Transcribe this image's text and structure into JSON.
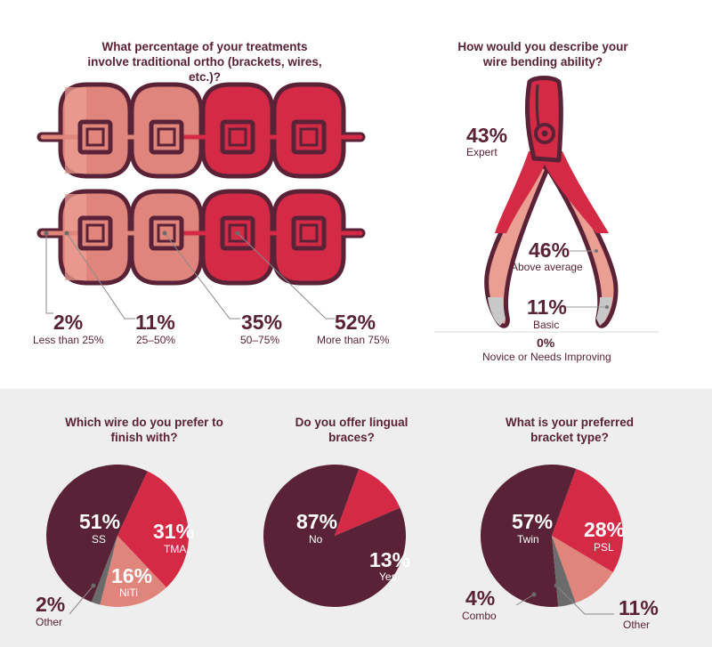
{
  "colors": {
    "maroon": "#5a2236",
    "red": "#d42a46",
    "pink": "#e0857c",
    "light_pink": "#eb9f93",
    "gray": "#6b6b6b",
    "light_gray": "#c8c8c8",
    "band": "#efeeee"
  },
  "treatments": {
    "question": "What percentage of your treatments involve traditional ortho (brackets, wires, etc.)?",
    "items": [
      {
        "pct": "2%",
        "label": "Less than 25%"
      },
      {
        "pct": "11%",
        "label": "25–50%"
      },
      {
        "pct": "35%",
        "label": "50–75%"
      },
      {
        "pct": "52%",
        "label": "More than 75%"
      }
    ]
  },
  "wire_bending": {
    "question": "How would you describe your wire bending ability?",
    "items": [
      {
        "pct": "43%",
        "label": "Expert"
      },
      {
        "pct": "46%",
        "label": "Above average"
      },
      {
        "pct": "11%",
        "label": "Basic"
      },
      {
        "pct": "0%",
        "label": "Novice or Needs Improving"
      }
    ]
  },
  "finish_wire": {
    "question": "Which wire do you prefer to finish with?",
    "ss": {
      "pct": "51%",
      "label": "SS"
    },
    "tma": {
      "pct": "31%",
      "label": "TMA"
    },
    "niti": {
      "pct": "16%",
      "label": "NiTi"
    },
    "other": {
      "pct": "2%",
      "label": "Other"
    }
  },
  "lingual": {
    "question": "Do you offer lingual braces?",
    "no": {
      "pct": "87%",
      "label": "No"
    },
    "yes": {
      "pct": "13%",
      "label": "Yes"
    }
  },
  "bracket_type": {
    "question": "What is your preferred bracket type?",
    "twin": {
      "pct": "57%",
      "label": "Twin"
    },
    "psl": {
      "pct": "28%",
      "label": "PSL"
    },
    "combo": {
      "pct": "4%",
      "label": "Combo"
    },
    "other": {
      "pct": "11%",
      "label": "Other"
    }
  },
  "chart_data": [
    {
      "type": "bar",
      "title": "What percentage of your treatments involve traditional ortho (brackets, wires, etc.)?",
      "categories": [
        "Less than 25%",
        "25–50%",
        "50–75%",
        "More than 75%"
      ],
      "values": [
        2,
        11,
        35,
        52
      ]
    },
    {
      "type": "bar",
      "title": "How would you describe your wire bending ability?",
      "categories": [
        "Expert",
        "Above average",
        "Basic",
        "Novice or Needs Improving"
      ],
      "values": [
        43,
        46,
        11,
        0
      ]
    },
    {
      "type": "pie",
      "title": "Which wire do you prefer to finish with?",
      "categories": [
        "SS",
        "TMA",
        "NiTi",
        "Other"
      ],
      "values": [
        51,
        31,
        16,
        2
      ],
      "colors": [
        "#5a2236",
        "#d42a46",
        "#e0857c",
        "#6b6b6b"
      ]
    },
    {
      "type": "pie",
      "title": "Do you offer lingual braces?",
      "categories": [
        "No",
        "Yes"
      ],
      "values": [
        87,
        13
      ],
      "colors": [
        "#5a2236",
        "#d42a46"
      ]
    },
    {
      "type": "pie",
      "title": "What is your preferred bracket type?",
      "categories": [
        "Twin",
        "PSL",
        "Other",
        "Combo"
      ],
      "values": [
        57,
        28,
        11,
        4
      ],
      "colors": [
        "#5a2236",
        "#d42a46",
        "#e0857c",
        "#6b6b6b"
      ]
    }
  ]
}
